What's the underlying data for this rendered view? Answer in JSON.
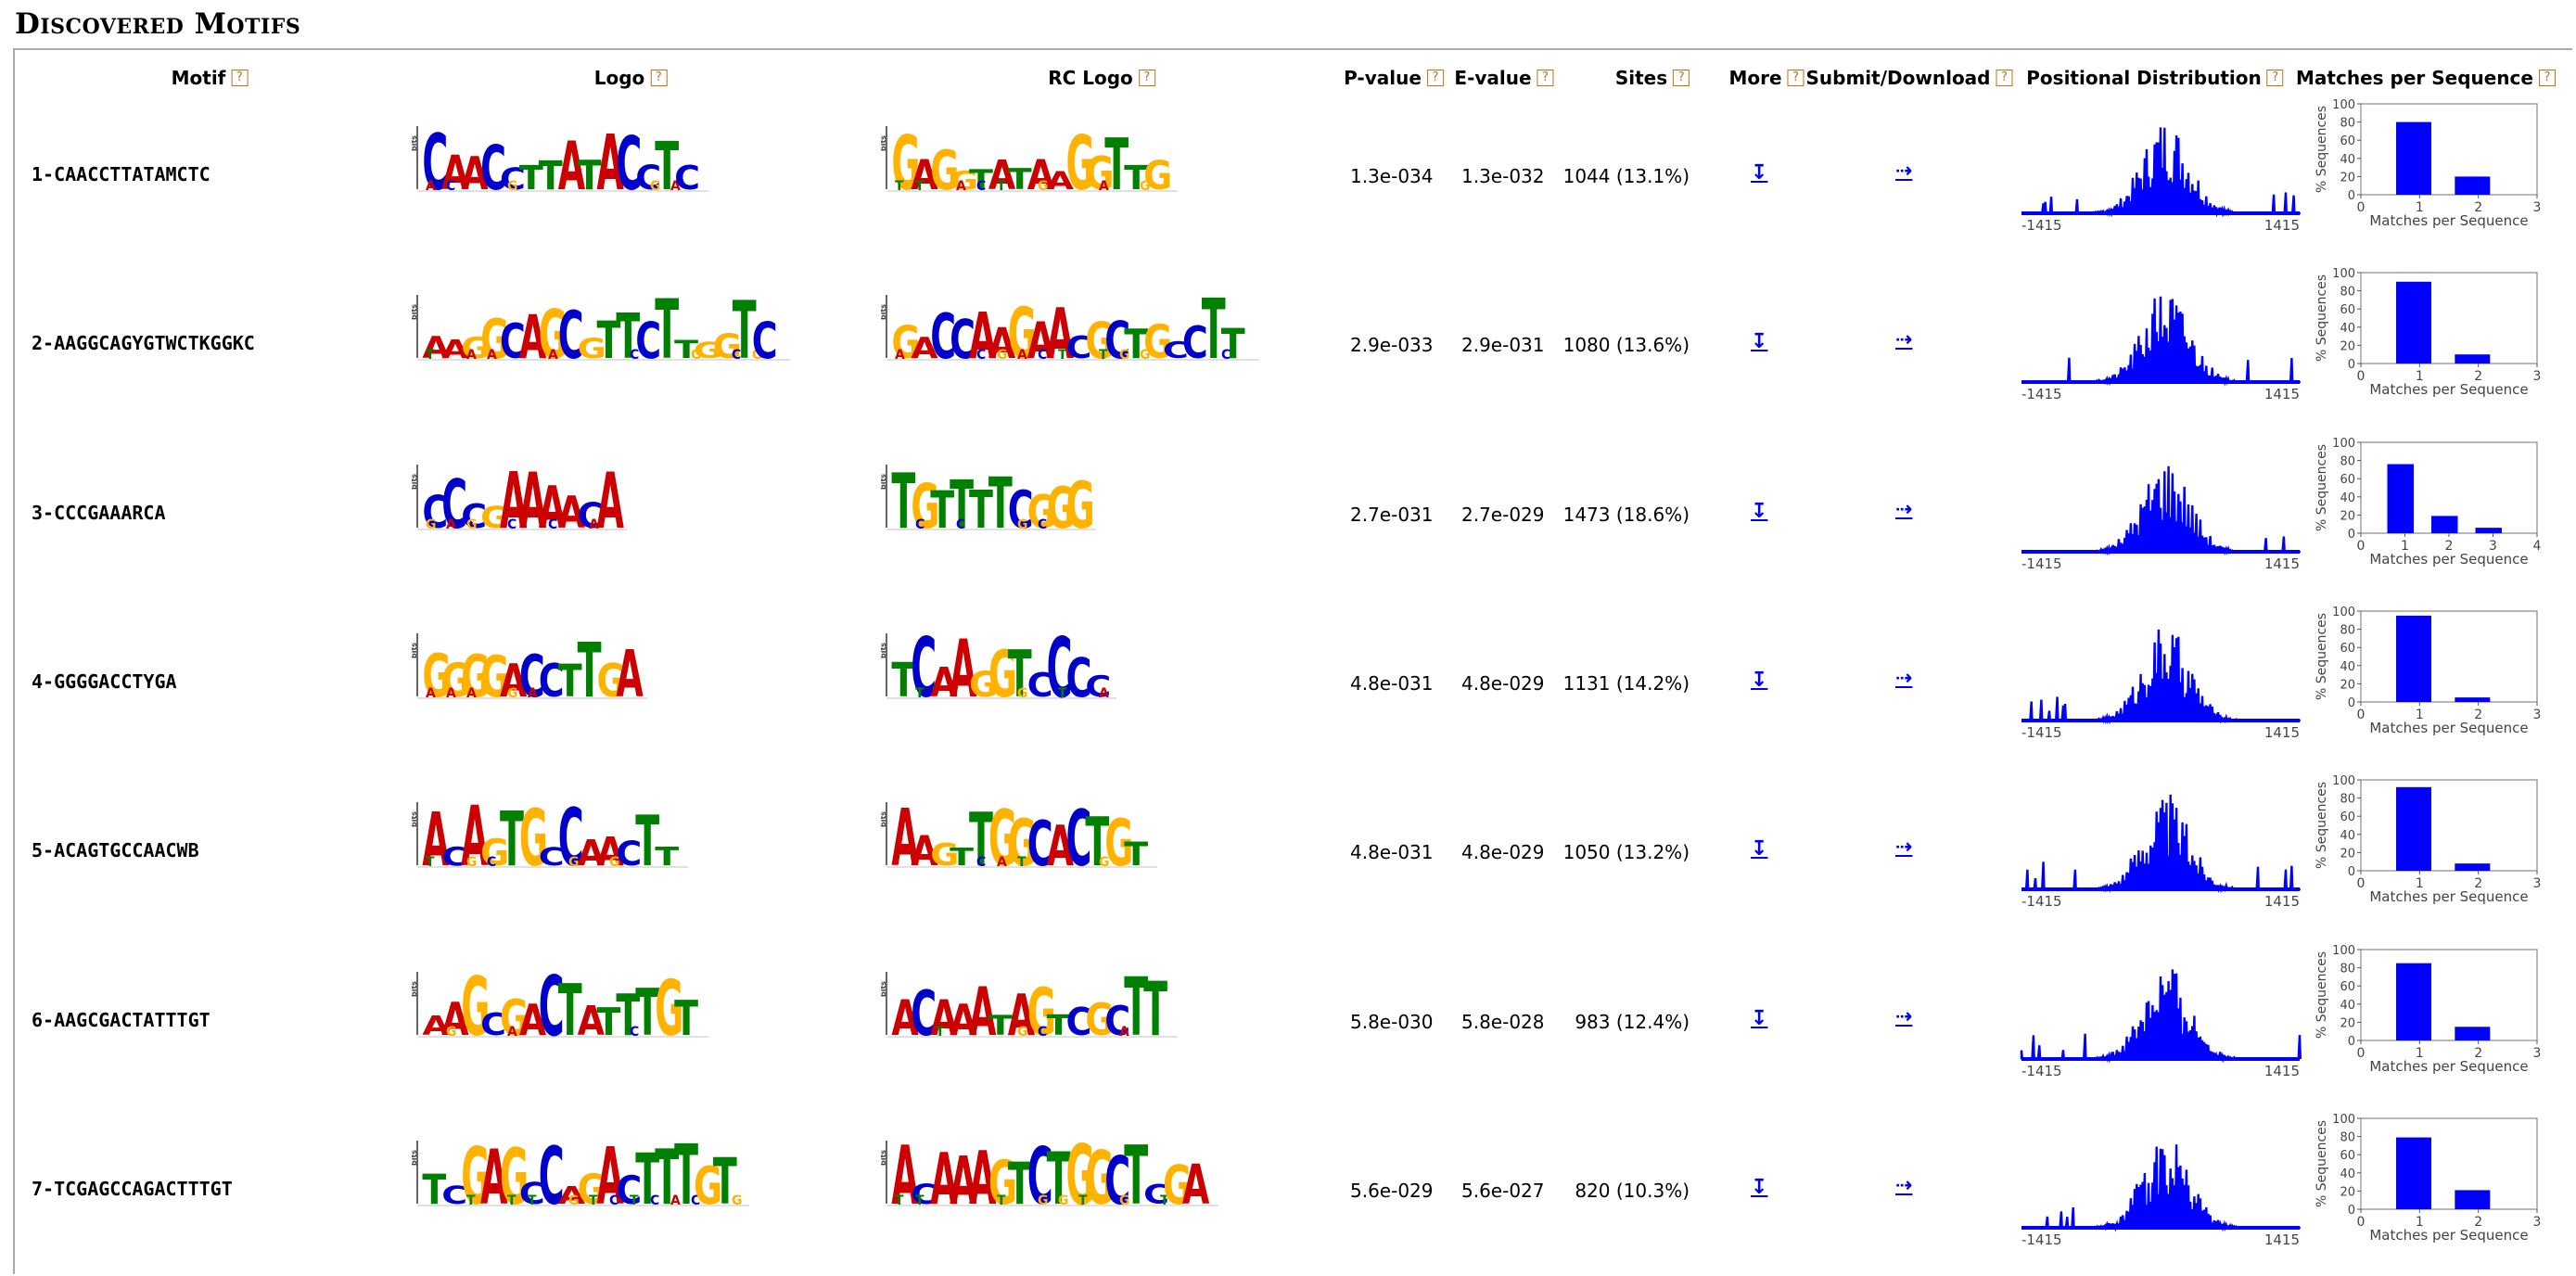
{
  "section_title": "Discovered Motifs",
  "help_glyph": "?",
  "headers": {
    "motif": "Motif",
    "logo": "Logo",
    "rc_logo": "RC Logo",
    "pvalue": "P-value",
    "evalue": "E-value",
    "sites": "Sites",
    "more": "More",
    "submit": "Submit/Download",
    "positional": "Positional Distribution",
    "matches": "Matches per Sequence"
  },
  "colors": {
    "A": "#cc0000",
    "C": "#0000cc",
    "G": "#ffb300",
    "T": "#008000",
    "bar": "#0000ff",
    "help": "#c0701a"
  },
  "icons": {
    "more": "download-arrow-icon",
    "submit": "dotted-right-arrow-icon"
  },
  "icon_glyphs": {
    "more": "↧",
    "submit": "⇢"
  },
  "logo_axis_label": "bits",
  "positional_axis": {
    "min_label": "-1415",
    "max_label": "1415"
  },
  "matches_chart": {
    "ylabel": "% Sequences",
    "xlabel": "Matches per Sequence",
    "yticks": [
      "0",
      "20",
      "40",
      "60",
      "80",
      "100"
    ]
  },
  "motifs": [
    {
      "id": "1-CAACCTTATAMCTC",
      "logo": "CAACCTTATACCTC",
      "rc_logo": "GAGGTATAAGGTTG",
      "pvalue": "1.3e-034",
      "evalue": "1.3e-032",
      "sites": "1044 (13.1%)",
      "xticks": [
        "0",
        "1",
        "2",
        "3"
      ],
      "match_pct": [
        80,
        20
      ]
    },
    {
      "id": "2-AAGGCAGYGTWCTKGGKC",
      "logo": "AAGGCAGCGTTCTTGGTC",
      "rc_logo": "GACCAAGAACGCTGCCTT",
      "pvalue": "2.9e-033",
      "evalue": "2.9e-031",
      "sites": "1080 (13.6%)",
      "xticks": [
        "0",
        "1",
        "2",
        "3"
      ],
      "match_pct": [
        90,
        10
      ]
    },
    {
      "id": "3-CCCGAAARCA",
      "logo": "CCCGAAAACA",
      "rc_logo": "TGTTTTCGGG",
      "pvalue": "2.7e-031",
      "evalue": "2.7e-029",
      "sites": "1473 (18.6%)",
      "xticks": [
        "0",
        "1",
        "2",
        "3",
        "4"
      ],
      "match_pct": [
        76,
        19,
        6
      ]
    },
    {
      "id": "4-GGGGACCTYGA",
      "logo": "GGGGACCTTGA",
      "rc_logo": "TCAAGGTCCCC",
      "pvalue": "4.8e-031",
      "evalue": "4.8e-029",
      "sites": "1131 (14.2%)",
      "xticks": [
        "0",
        "1",
        "2",
        "3"
      ],
      "match_pct": [
        95,
        5
      ]
    },
    {
      "id": "5-ACAGTGCCAACWB",
      "logo": "ACAGTGCCAACTT",
      "rc_logo": "AAGTTGGCACTGT",
      "pvalue": "4.8e-031",
      "evalue": "4.8e-029",
      "sites": "1050 (13.2%)",
      "xticks": [
        "0",
        "1",
        "2",
        "3"
      ],
      "match_pct": [
        92,
        8
      ]
    },
    {
      "id": "6-AAGCGACTATTTGT",
      "logo": "AAGCGACTATTTGT",
      "rc_logo": "ACAAATAGTCGCTT",
      "pvalue": "5.8e-030",
      "evalue": "5.8e-028",
      "sites": "983 (12.4%)",
      "xticks": [
        "0",
        "1",
        "2",
        "3"
      ],
      "match_pct": [
        85,
        15
      ]
    },
    {
      "id": "7-TCGAGCCAGACTTTGT",
      "logo": "TCGAGCCAGACTTTGT",
      "rc_logo": "ACAAAGTCTGGCTCGA",
      "pvalue": "5.6e-029",
      "evalue": "5.6e-027",
      "sites": "820 (10.3%)",
      "xticks": [
        "0",
        "1",
        "2",
        "3"
      ],
      "match_pct": [
        79,
        21
      ]
    }
  ]
}
